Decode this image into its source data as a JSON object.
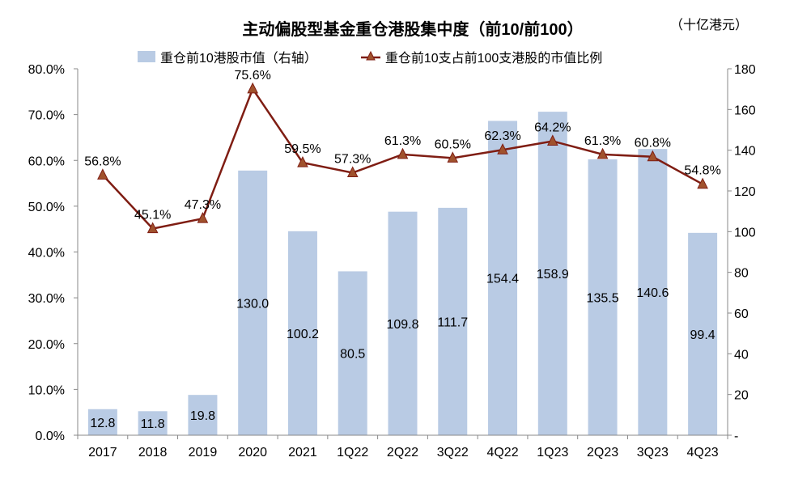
{
  "chart_data": {
    "type": "bar+line",
    "title": "主动偏股型基金重仓港股集中度（前10/前100）",
    "unit_label": "（十亿港元）",
    "categories": [
      "2017",
      "2018",
      "2019",
      "2020",
      "2021",
      "1Q22",
      "2Q22",
      "3Q22",
      "4Q22",
      "1Q23",
      "2Q23",
      "3Q23",
      "4Q23"
    ],
    "series": [
      {
        "name": "重仓前10港股市值（右轴）",
        "type": "bar",
        "axis": "right",
        "color": "#b9cbe4",
        "values": [
          12.8,
          11.8,
          19.8,
          130.0,
          100.2,
          80.5,
          109.8,
          111.7,
          154.4,
          158.9,
          135.5,
          140.6,
          99.4
        ],
        "labels": [
          "12.8",
          "11.8",
          "19.8",
          "130.0",
          "100.2",
          "80.5",
          "109.8",
          "111.7",
          "154.4",
          "158.9",
          "135.5",
          "140.6",
          "99.4"
        ]
      },
      {
        "name": "重仓前10支占前100支港股的市值比例",
        "type": "line",
        "axis": "left",
        "color": "#7f1d13",
        "marker_color": "#a0522d",
        "marker": "triangle",
        "values": [
          56.8,
          45.1,
          47.3,
          75.6,
          59.5,
          57.3,
          61.3,
          60.5,
          62.3,
          64.2,
          61.3,
          60.8,
          54.8
        ],
        "labels": [
          "56.8%",
          "45.1%",
          "47.3%",
          "75.6%",
          "59.5%",
          "57.3%",
          "61.3%",
          "60.5%",
          "62.3%",
          "64.2%",
          "61.3%",
          "60.8%",
          "54.8%"
        ]
      }
    ],
    "left_axis": {
      "range": [
        0,
        80
      ],
      "ticks": [
        "0.0%",
        "10.0%",
        "20.0%",
        "30.0%",
        "40.0%",
        "50.0%",
        "60.0%",
        "70.0%",
        "80.0%"
      ]
    },
    "right_axis": {
      "range": [
        0,
        180
      ],
      "ticks": [
        "-",
        "20",
        "40",
        "60",
        "80",
        "100",
        "120",
        "140",
        "160",
        "180"
      ]
    },
    "grid": false,
    "legend_position": "top"
  }
}
